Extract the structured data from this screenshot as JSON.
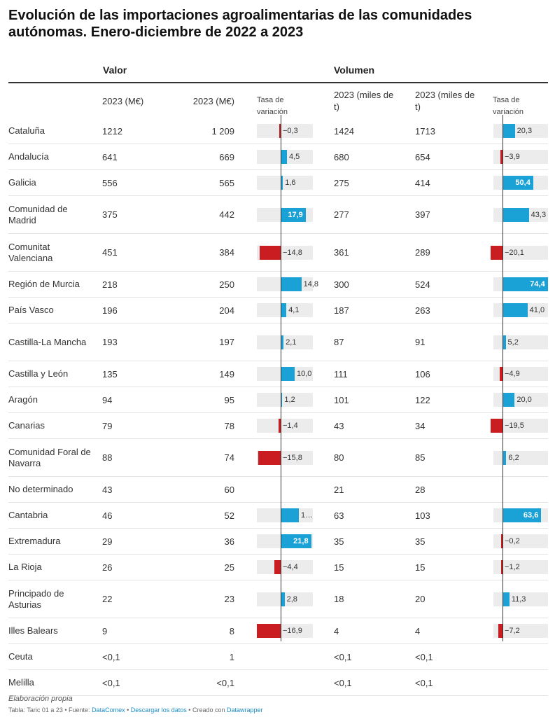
{
  "title": "Evolución de las importaciones agroalimentarias de las comunidades autónomas. Enero-diciembre de 2022 a 2023",
  "groups": {
    "valor": "Valor",
    "volumen": "Volumen"
  },
  "headers": {
    "valor_a": "2023 (M€)",
    "valor_b": "2023 (M€)",
    "tasa_valor": "Tasa de variación",
    "vol_a": "2023 (miles de t)",
    "vol_b": "2023 (miles de t)",
    "tasa_vol": "Tasa de variación"
  },
  "footer": {
    "note": "Elaboración propia",
    "source_prefix": "Tabla: Taric 01 a 23 • Fuente: ",
    "source_link": "DataComex",
    "sep1": " • ",
    "download": "Descargar los datos",
    "sep2": " • Creado con ",
    "tool": "Datawrapper"
  },
  "chart_data": {
    "type": "table",
    "columns": [
      "",
      "2023 (M€)",
      "2023 (M€)",
      "Tasa de variación",
      "2023 (miles de t)",
      "2023 (miles de t)",
      "Tasa de variación"
    ],
    "rows": [
      {
        "name": "Cataluña",
        "v1": "1212",
        "v2": "1 209",
        "tv": -0.3,
        "tv_label": "−0,3",
        "m1": "1424",
        "m2": "1713",
        "tm": 20.3,
        "tm_label": "20,3"
      },
      {
        "name": "Andalucía",
        "v1": "641",
        "v2": "669",
        "tv": 4.5,
        "tv_label": "4,5",
        "m1": "680",
        "m2": "654",
        "tm": -3.9,
        "tm_label": "−3,9"
      },
      {
        "name": "Galicia",
        "v1": "556",
        "v2": "565",
        "tv": 1.6,
        "tv_label": "1,6",
        "m1": "275",
        "m2": "414",
        "tm": 50.4,
        "tm_label": "50,4"
      },
      {
        "name": "Comunidad de Madrid",
        "v1": "375",
        "v2": "442",
        "tv": 17.9,
        "tv_label": "17,9",
        "m1": "277",
        "m2": "397",
        "tm": 43.3,
        "tm_label": "43,3"
      },
      {
        "name": "Comunitat Valenciana",
        "v1": "451",
        "v2": "384",
        "tv": -14.8,
        "tv_label": "−14,8",
        "m1": "361",
        "m2": "289",
        "tm": -20.1,
        "tm_label": "−20,1"
      },
      {
        "name": "Región de Murcia",
        "v1": "218",
        "v2": "250",
        "tv": 14.8,
        "tv_label": "14,8",
        "m1": "300",
        "m2": "524",
        "tm": 74.4,
        "tm_label": "74,4"
      },
      {
        "name": "País Vasco",
        "v1": "196",
        "v2": "204",
        "tv": 4.1,
        "tv_label": "4,1",
        "m1": "187",
        "m2": "263",
        "tm": 41.0,
        "tm_label": "41,0"
      },
      {
        "name": "Castilla-La Mancha",
        "v1": "193",
        "v2": "197",
        "tv": 2.1,
        "tv_label": "2,1",
        "m1": "87",
        "m2": "91",
        "tm": 5.2,
        "tm_label": "5,2"
      },
      {
        "name": "Castilla y León",
        "v1": "135",
        "v2": "149",
        "tv": 10.0,
        "tv_label": "10,0",
        "m1": "111",
        "m2": "106",
        "tm": -4.9,
        "tm_label": "−4,9"
      },
      {
        "name": "Aragón",
        "v1": "94",
        "v2": "95",
        "tv": 1.2,
        "tv_label": "1,2",
        "m1": "101",
        "m2": "122",
        "tm": 20.0,
        "tm_label": "20,0"
      },
      {
        "name": "Canarias",
        "v1": "79",
        "v2": "78",
        "tv": -1.4,
        "tv_label": "−1,4",
        "m1": "43",
        "m2": "34",
        "tm": -19.5,
        "tm_label": "−19,5"
      },
      {
        "name": "Comunidad Foral de Navarra",
        "v1": "88",
        "v2": "74",
        "tv": -15.8,
        "tv_label": "−15,8",
        "m1": "80",
        "m2": "85",
        "tm": 6.2,
        "tm_label": "6,2"
      },
      {
        "name": "No determinado",
        "v1": "43",
        "v2": "60",
        "tv": null,
        "tv_label": "",
        "m1": "21",
        "m2": "28",
        "tm": null,
        "tm_label": ""
      },
      {
        "name": "Cantabria",
        "v1": "46",
        "v2": "52",
        "tv": 13.0,
        "tv_label": "1…",
        "m1": "63",
        "m2": "103",
        "tm": 63.6,
        "tm_label": "63,6"
      },
      {
        "name": "Extremadura",
        "v1": "29",
        "v2": "36",
        "tv": 21.8,
        "tv_label": "21,8",
        "m1": "35",
        "m2": "35",
        "tm": -0.2,
        "tm_label": "−0,2"
      },
      {
        "name": "La Rioja",
        "v1": "26",
        "v2": "25",
        "tv": -4.4,
        "tv_label": "−4,4",
        "m1": "15",
        "m2": "15",
        "tm": -1.2,
        "tm_label": "−1,2"
      },
      {
        "name": "Principado de Asturias",
        "v1": "22",
        "v2": "23",
        "tv": 2.8,
        "tv_label": "2,8",
        "m1": "18",
        "m2": "20",
        "tm": 11.3,
        "tm_label": "11,3"
      },
      {
        "name": "Illes Balears",
        "v1": "9",
        "v2": "8",
        "tv": -16.9,
        "tv_label": "−16,9",
        "m1": "4",
        "m2": "4",
        "tm": -7.2,
        "tm_label": "−7,2"
      },
      {
        "name": "Ceuta",
        "v1": "<0,1",
        "v2": "1",
        "tv": null,
        "tv_label": "",
        "m1": "<0,1",
        "m2": "<0,1",
        "tm": null,
        "tm_label": ""
      },
      {
        "name": "Melilla",
        "v1": "<0,1",
        "v2": "<0,1",
        "tv": null,
        "tv_label": "",
        "m1": "<0,1",
        "m2": "<0,1",
        "tm": null,
        "tm_label": ""
      }
    ],
    "colors": {
      "positive": "#1aa1d6",
      "negative": "#c91d22",
      "bar_background": "#ececec"
    }
  }
}
